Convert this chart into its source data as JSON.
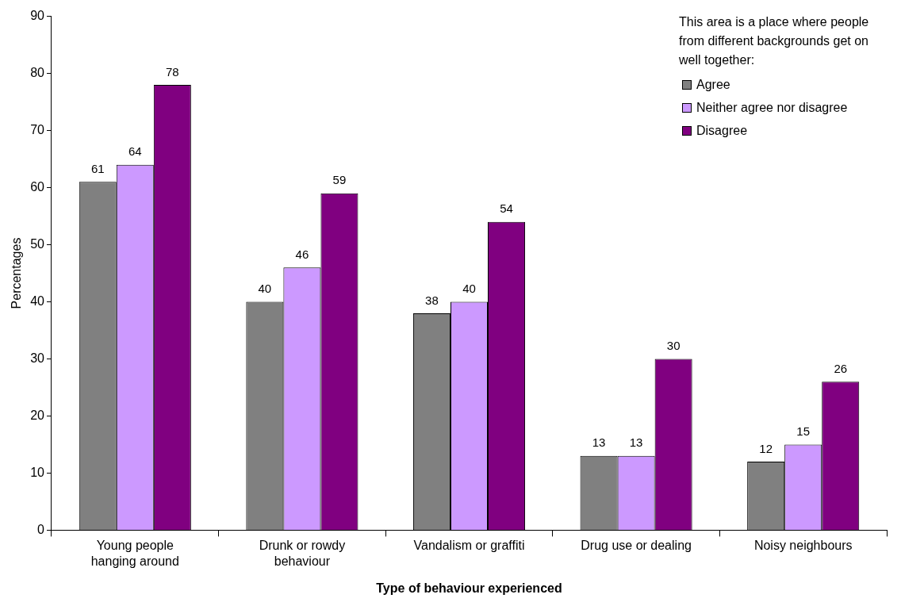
{
  "chart_data": {
    "type": "bar",
    "xlabel": "Type of behaviour experienced",
    "ylabel": "Percentages",
    "legend_title": "This area is a place where people from different backgrounds get on well together:",
    "categories": [
      "Young people hanging around",
      "Drunk or rowdy behaviour",
      "Vandalism or graffiti",
      "Drug use or dealing",
      "Noisy neighbours"
    ],
    "series": [
      {
        "name": "Agree",
        "color": "#808080",
        "values": [
          61,
          40,
          38,
          13,
          12
        ]
      },
      {
        "name": "Neither agree nor disagree",
        "color": "#cc99ff",
        "values": [
          64,
          46,
          40,
          13,
          15
        ]
      },
      {
        "name": "Disagree",
        "color": "#800080",
        "values": [
          78,
          59,
          54,
          30,
          26
        ]
      }
    ],
    "ylim": [
      0,
      90
    ],
    "yticks": [
      0,
      10,
      20,
      30,
      40,
      50,
      60,
      70,
      80,
      90
    ],
    "grid": false,
    "legend": "top right",
    "data_labels": true
  }
}
